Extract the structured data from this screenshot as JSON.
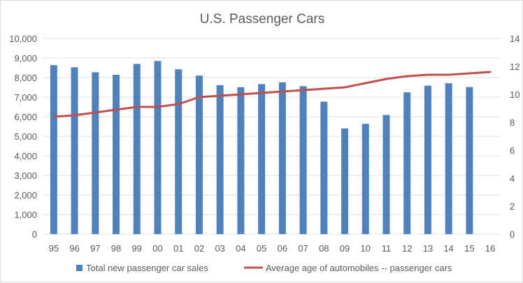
{
  "chart_data": {
    "type": "bar+line",
    "title": "U.S. Passenger Cars",
    "categories": [
      "95",
      "96",
      "97",
      "98",
      "99",
      "00",
      "01",
      "02",
      "03",
      "04",
      "05",
      "06",
      "07",
      "08",
      "09",
      "10",
      "11",
      "12",
      "13",
      "14",
      "15",
      "16"
    ],
    "series": [
      {
        "name": "Total new passenger car sales",
        "type": "bar",
        "axis": "left",
        "color": "#4f81bd",
        "values": [
          8635,
          8526,
          8272,
          8142,
          8698,
          8847,
          8423,
          8103,
          7610,
          7506,
          7667,
          7761,
          7562,
          6769,
          5400,
          5636,
          6089,
          7245,
          7586,
          7708,
          7517,
          null
        ]
      },
      {
        "name": "Average age of automobiles -- passenger cars",
        "type": "line",
        "axis": "right",
        "color": "#c0504d",
        "values": [
          8.4,
          8.5,
          8.7,
          8.9,
          9.1,
          9.1,
          9.3,
          9.8,
          9.9,
          10.0,
          10.1,
          10.2,
          10.3,
          10.4,
          10.5,
          10.8,
          11.1,
          11.3,
          11.4,
          11.4,
          11.5,
          11.6
        ]
      }
    ],
    "y_left": {
      "range": [
        0,
        10000
      ],
      "ticks": [
        "0",
        "1,000",
        "2,000",
        "3,000",
        "4,000",
        "5,000",
        "6,000",
        "7,000",
        "8,000",
        "9,000",
        "10,000"
      ]
    },
    "y_right": {
      "range": [
        0,
        14
      ],
      "ticks": [
        "0",
        "2",
        "4",
        "6",
        "8",
        "10",
        "12",
        "14"
      ]
    },
    "grid": true,
    "legend": "bottom"
  }
}
